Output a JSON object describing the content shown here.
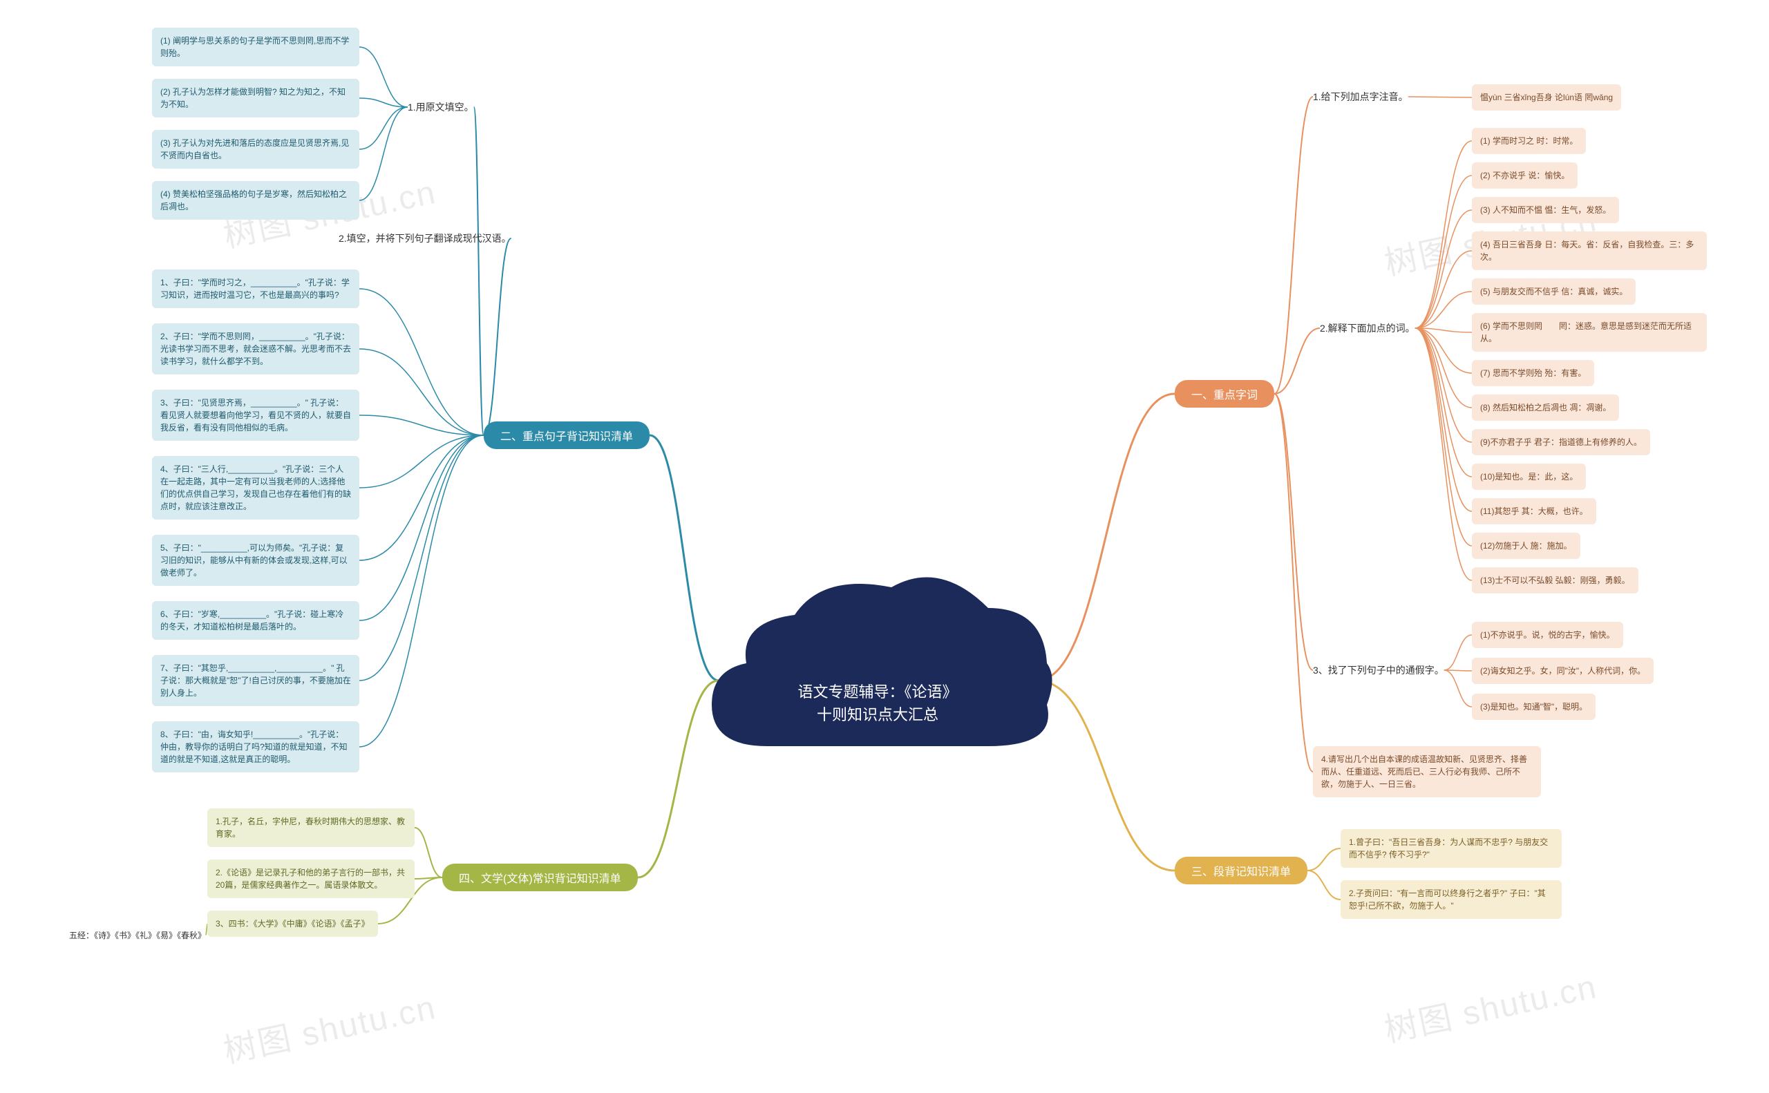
{
  "watermark": "树图 shutu.cn",
  "center": {
    "title_line1": "语文专题辅导：《论语》",
    "title_line2": "十则知识点大汇总",
    "fill": "#1c2a59"
  },
  "branches": {
    "b1": {
      "label": "一、重点字词",
      "color": "#e8915f",
      "leaf_bg": "#fbe7da",
      "leaf_color": "#7a4a2a"
    },
    "b2": {
      "label": "二、重点句子背记知识清单",
      "color": "#2b8aa8",
      "leaf_bg": "#d8ebf0",
      "leaf_color": "#1e5a6d"
    },
    "b3": {
      "label": "三、段背记知识清单",
      "color": "#e2b24f",
      "leaf_bg": "#f7edd3",
      "leaf_color": "#7a5e22"
    },
    "b4": {
      "label": "四、文学(文体)常识背记知识清单",
      "color": "#a4b646",
      "leaf_bg": "#edf0d5",
      "leaf_color": "#5d6a24"
    }
  },
  "b1_sub1": "1.给下列加点字注音。",
  "b1_sub1_leaf": "愠yùn 三省xǐng吾身 论lún语 罔wǎng",
  "b1_sub2": "2.解释下面加点的词。",
  "b1_sub2_leaves": [
    "(1) 学而时习之 时：时常。",
    "(2) 不亦说乎 说：愉快。",
    "(3) 人不知而不愠 愠：生气，发怒。",
    "(4) 吾日三省吾身 日：每天。省：反省，自我检查。三：多次。",
    "(5) 与朋友交而不信乎 信：真诚，诚实。",
    "(6) 学而不思则罔　　罔：迷惑。意思是感到迷茫而无所适从。",
    "(7) 思而不学则殆 殆：有害。",
    "(8) 然后知松柏之后凋也 凋：凋谢。",
    "(9)不亦君子乎 君子：指道德上有修养的人。",
    "(10)是知也。是：此，这。",
    "(11)其恕乎 其：大概，也许。",
    "(12)勿施于人 施：施加。",
    "(13)士不可以不弘毅 弘毅：刚强，勇毅。"
  ],
  "b1_sub3": "3、找了下列句子中的通假字。",
  "b1_sub3_leaves": [
    "(1)不亦说乎。说，悦的古字，愉快。",
    "(2)诲女知之乎。女，同\"汝\"，人称代词，你。",
    "(3)是知也。知通\"智\"，聪明。"
  ],
  "b1_sub4_leaf": "4.请写出几个出自本课的成语温故知新、见贤思齐、择善而从、任重道远、死而后已、三人行必有我师、己所不欲，勿施于人、一日三省。",
  "b2_sub1": "1.用原文填空。",
  "b2_sub1_leaves": [
    "(1) 阐明学与思关系的句子是学而不思则罔,思而不学则殆。",
    "(2) 孔子认为怎样才能做到明智? 知之为知之，不知为不知。",
    "(3) 孔子认为对先进和落后的态度应是见贤思齐焉,见不贤而内自省也。",
    "(4) 赞美松柏坚强品格的句子是岁寒，然后知松柏之后凋也。"
  ],
  "b2_sub2": "2.填空，并将下列句子翻译成现代汉语。",
  "b2_sub2_leaves": [
    "1、子曰：\"学而时习之，__________。\"孔子说：学习知识，进而按时温习它，不也是最高兴的事吗?",
    "2、子曰：\"学而不思则罔，__________。\"孔子说：光读书学习而不思考，就会迷惑不解。光思考而不去读书学习，就什么都学不到。",
    "3、子曰：\"见贤思齐焉，__________。\" 孔子说：看见贤人就要想着向他学习，看见不贤的人，就要自我反省，看有没有同他相似的毛病。",
    "4、子曰：\"三人行,__________。\"孔子说：三个人在一起走路，其中一定有可以当我老师的人;选择他们的优点供自己学习，发现自己也存在着他们有的缺点时，就应该注意改正。",
    "5、子曰：\"__________,可以为师矣。\"孔子说：复习旧的知识，能够从中有新的体会或发现,这样,可以做老师了。",
    "6、子曰：\"岁寒,__________。\"孔子说：碰上寒冷的冬天，才知道松柏树是最后落叶的。",
    "7、子曰：\"其恕乎,__________,__________。\" 孔子说：那大概就是\"恕\"了!自己讨厌的事，不要施加在别人身上。",
    "8、子曰：\"由，诲女知乎!__________。\"孔子说：仲由，教导你的话明白了吗?知道的就是知道，不知道的就是不知道,这就是真正的聪明。"
  ],
  "b3_leaves": [
    "1.曾子曰：\"吾日三省吾身：为人谋而不忠乎? 与朋友交而不信乎? 传不习乎?\"",
    "2.子贡问曰：\"有一言而可以终身行之者乎?\" 子曰：\"其恕乎!己所不欲，勿施于人。\""
  ],
  "b4_leaves": [
    "1.孔子，名丘，字仲尼，春秋时期伟大的思想家、教育家。",
    "2.《论语》是记录孔子和他的弟子言行的一部书，共20篇，是儒家经典著作之一。属语录体散文。",
    "3、四书：《大学》《中庸》《论语》《孟子》"
  ],
  "b4_extra": "五经：《诗》《书》《礼》《易》《春秋》",
  "link_colors": {
    "b1": "#e8915f",
    "b2": "#2b8aa8",
    "b3": "#e2b24f",
    "b4": "#a4b646"
  }
}
